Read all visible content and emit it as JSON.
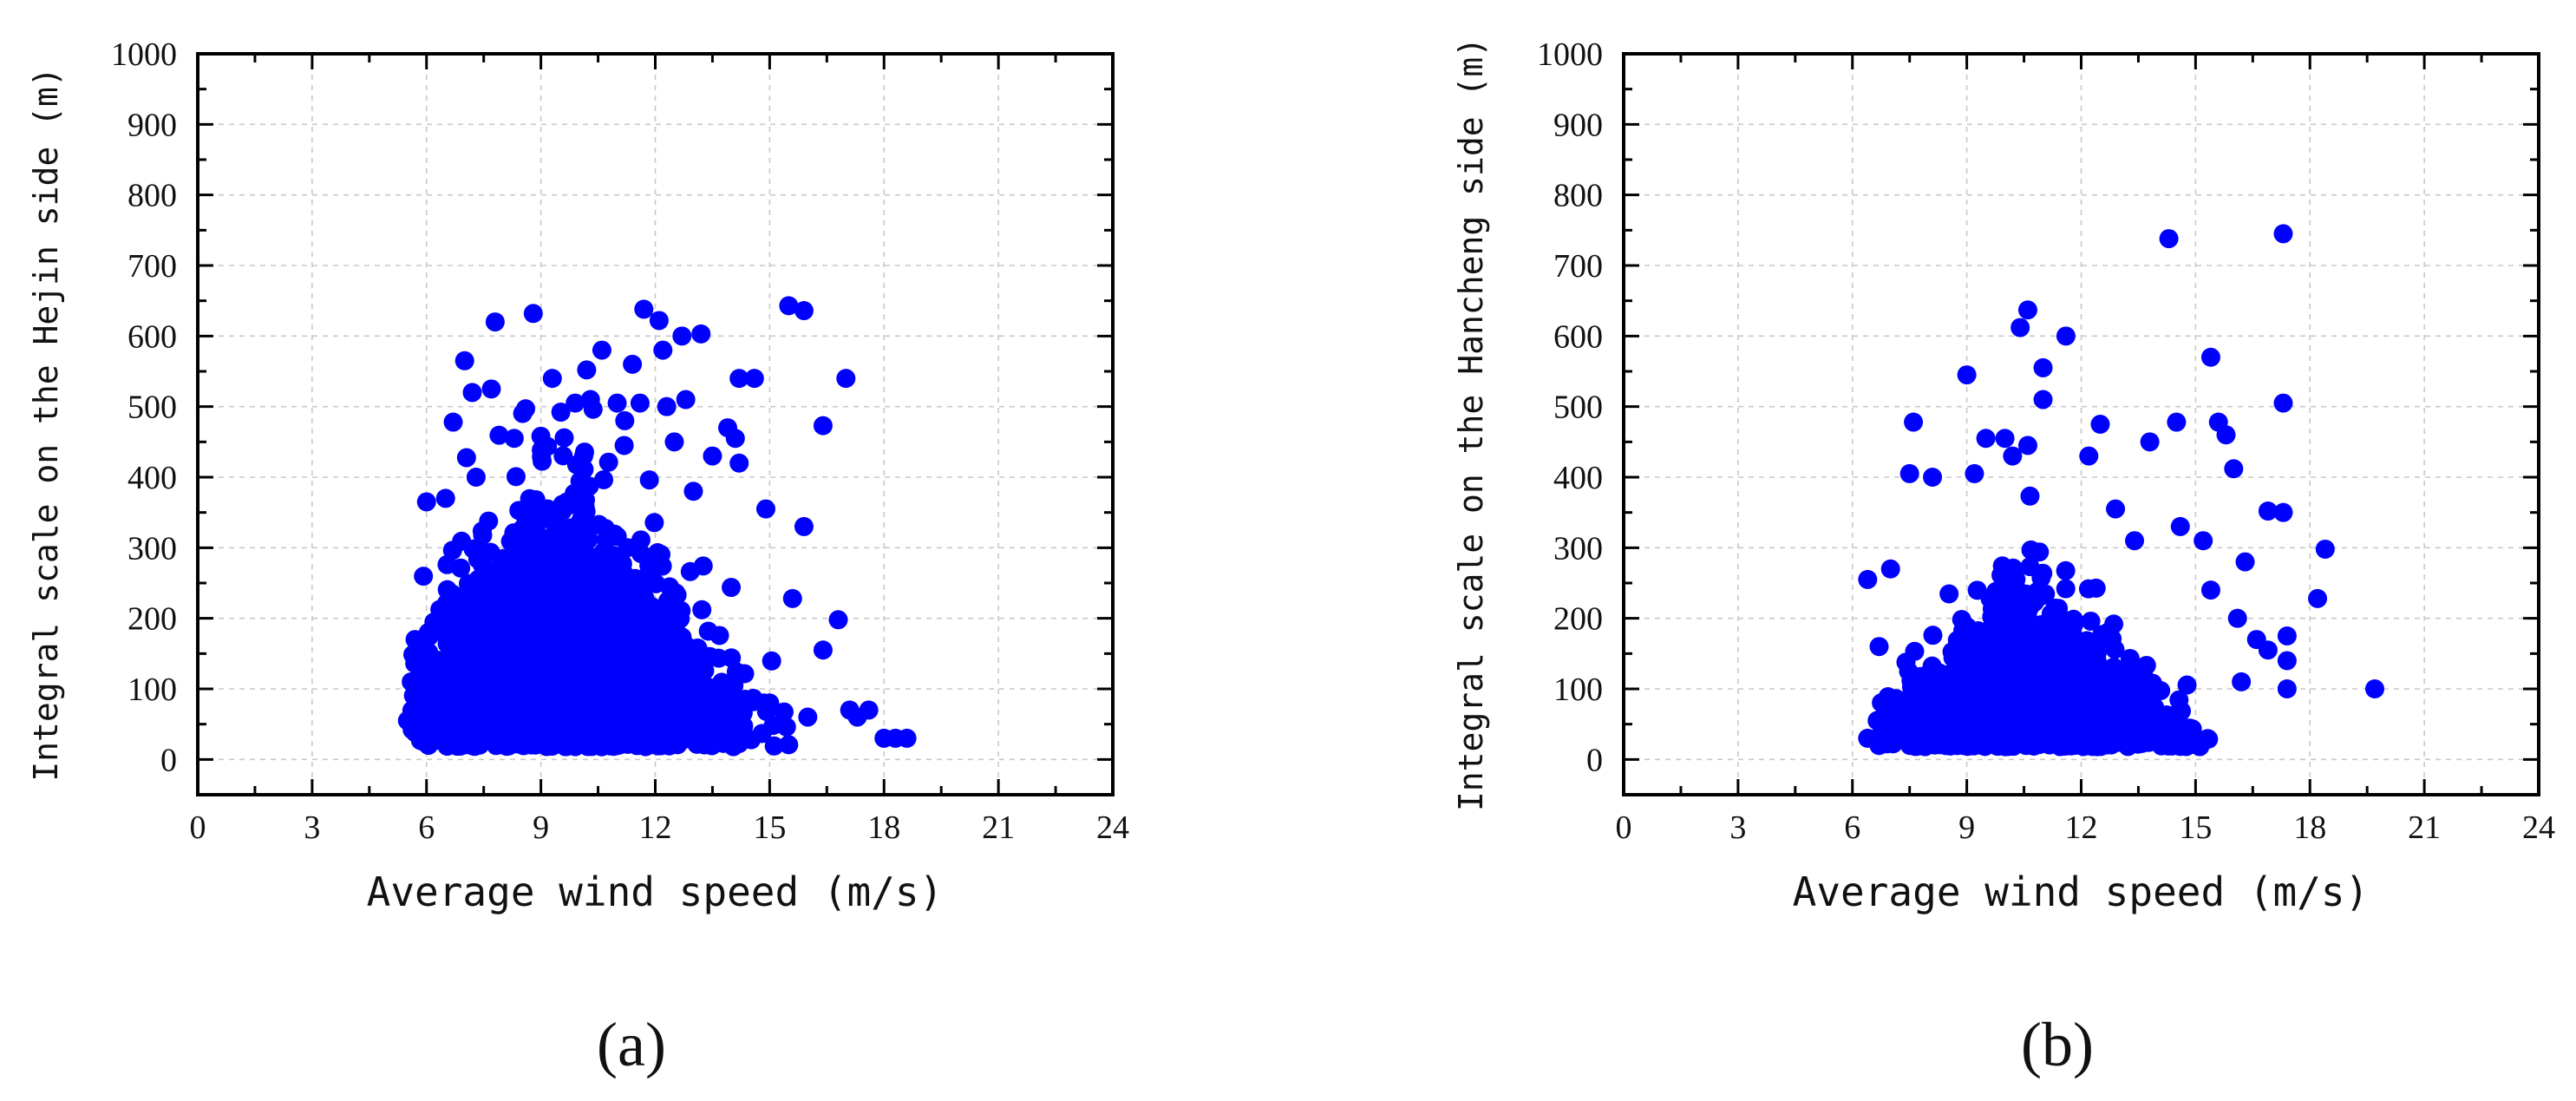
{
  "panels": [
    {
      "label": "(a)"
    },
    {
      "label": "(b)"
    }
  ],
  "chart_data": [
    {
      "type": "scatter",
      "title": "",
      "xlabel": "Average wind speed (m/s)",
      "ylabel": "Integral scale on the Hejin side (m)",
      "xlim": [
        0,
        24
      ],
      "ylim": [
        -50,
        1000
      ],
      "xticks": [
        0,
        3,
        6,
        9,
        12,
        15,
        18,
        21,
        24
      ],
      "yticks": [
        0,
        100,
        200,
        300,
        400,
        500,
        600,
        700,
        800,
        900,
        1000
      ],
      "grid": true,
      "marker_color": "#0000ff",
      "series": [
        {
          "points": [
            [
              7.8,
              620
            ],
            [
              8.8,
              632
            ],
            [
              11.7,
              638
            ],
            [
              12.1,
              622
            ],
            [
              12.7,
              600
            ],
            [
              13.2,
              603
            ],
            [
              15.5,
              643
            ],
            [
              15.9,
              636
            ],
            [
              14.2,
              540
            ],
            [
              14.6,
              540
            ],
            [
              17.0,
              540
            ],
            [
              16.4,
              473
            ],
            [
              9.3,
              540
            ],
            [
              10.2,
              552
            ],
            [
              10.6,
              580
            ],
            [
              11.4,
              560
            ],
            [
              12.2,
              580
            ],
            [
              7.0,
              565
            ],
            [
              7.2,
              520
            ],
            [
              7.7,
              525
            ],
            [
              6.7,
              478
            ],
            [
              8.6,
              497
            ],
            [
              9.9,
              505
            ],
            [
              10.3,
              510
            ],
            [
              11.0,
              505
            ],
            [
              11.6,
              505
            ],
            [
              12.3,
              500
            ],
            [
              12.8,
              510
            ],
            [
              13.9,
              470
            ],
            [
              14.1,
              455
            ],
            [
              14.9,
              355
            ],
            [
              15.6,
              228
            ],
            [
              15.9,
              330
            ],
            [
              16.8,
              198
            ],
            [
              16.4,
              155
            ],
            [
              17.1,
              70
            ],
            [
              17.3,
              60
            ],
            [
              17.6,
              70
            ],
            [
              18.0,
              30
            ],
            [
              18.3,
              30
            ],
            [
              18.6,
              30
            ],
            [
              16.0,
              60
            ],
            [
              15.0,
              80
            ],
            [
              6.0,
              365
            ],
            [
              6.5,
              370
            ],
            [
              5.7,
              170
            ],
            [
              5.6,
              110
            ],
            [
              5.5,
              55
            ],
            [
              13.5,
              430
            ],
            [
              14.2,
              420
            ],
            [
              13.0,
              380
            ],
            [
              12.5,
              450
            ],
            [
              11.2,
              480
            ],
            [
              9.0,
              458
            ],
            [
              8.3,
              455
            ],
            [
              7.3,
              400
            ]
          ]
        }
      ],
      "cloud": {
        "x_range": [
          5.6,
          15.5
        ],
        "peak_x": 9.6,
        "count": 3200,
        "seed": 11
      }
    },
    {
      "type": "scatter",
      "title": "",
      "xlabel": "Average wind speed (m/s)",
      "ylabel": "Integral scale on the Hancheng side (m)",
      "xlim": [
        0,
        24
      ],
      "ylim": [
        -50,
        1000
      ],
      "xticks": [
        0,
        3,
        6,
        9,
        12,
        15,
        18,
        21,
        24
      ],
      "yticks": [
        0,
        100,
        200,
        300,
        400,
        500,
        600,
        700,
        800,
        900,
        1000
      ],
      "grid": true,
      "marker_color": "#0000ff",
      "series": [
        {
          "points": [
            [
              14.3,
              738
            ],
            [
              17.3,
              745
            ],
            [
              10.6,
              637
            ],
            [
              10.4,
              612
            ],
            [
              11.6,
              600
            ],
            [
              9.0,
              545
            ],
            [
              11.0,
              555
            ],
            [
              15.4,
              570
            ],
            [
              12.5,
              475
            ],
            [
              14.5,
              478
            ],
            [
              15.6,
              478
            ],
            [
              15.8,
              460
            ],
            [
              17.3,
              505
            ],
            [
              13.8,
              450
            ],
            [
              16.0,
              412
            ],
            [
              16.9,
              352
            ],
            [
              17.3,
              350
            ],
            [
              18.4,
              298
            ],
            [
              18.2,
              228
            ],
            [
              19.7,
              100
            ],
            [
              17.4,
              100
            ],
            [
              17.4,
              140
            ],
            [
              17.4,
              175
            ],
            [
              16.9,
              155
            ],
            [
              16.6,
              170
            ],
            [
              16.2,
              110
            ],
            [
              7.6,
              478
            ],
            [
              7.5,
              405
            ],
            [
              8.1,
              400
            ],
            [
              9.2,
              405
            ],
            [
              10.2,
              430
            ],
            [
              10.6,
              445
            ],
            [
              11.0,
              510
            ],
            [
              9.5,
              455
            ],
            [
              10.0,
              455
            ],
            [
              6.4,
              255
            ],
            [
              7.0,
              270
            ],
            [
              6.7,
              160
            ],
            [
              6.4,
              30
            ],
            [
              6.8,
              40
            ],
            [
              12.2,
              430
            ],
            [
              12.9,
              355
            ],
            [
              14.6,
              330
            ],
            [
              15.2,
              310
            ],
            [
              15.4,
              240
            ],
            [
              16.1,
              200
            ],
            [
              16.3,
              280
            ],
            [
              13.4,
              310
            ]
          ]
        }
      ],
      "cloud": {
        "x_range": [
          6.6,
          15.4
        ],
        "peak_x": 10.6,
        "count": 1900,
        "seed": 29
      }
    }
  ]
}
